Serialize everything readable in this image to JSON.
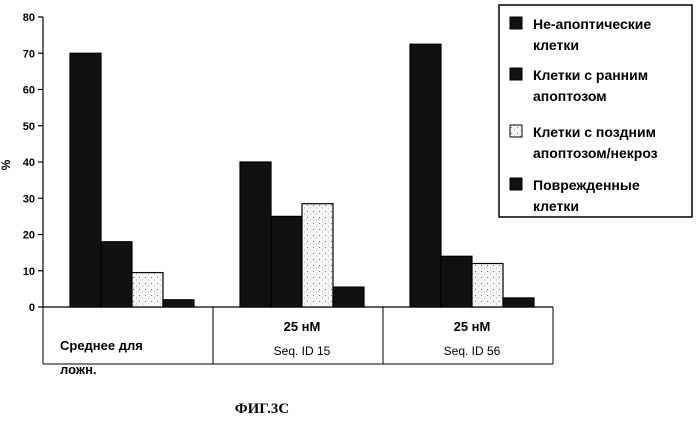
{
  "chart_data": {
    "type": "bar",
    "ylabel": "%",
    "ylim": [
      0,
      80
    ],
    "yticks": [
      0,
      10,
      20,
      30,
      40,
      50,
      60,
      70,
      80
    ],
    "grid": false,
    "legend_position": "top-right",
    "categories": [
      {
        "line1": "",
        "line2": "Среднее для",
        "line3": "ложн."
      },
      {
        "line1": "",
        "line2": "25 нМ",
        "line3": "Seq. ID 15"
      },
      {
        "line1": "",
        "line2": "25 нМ",
        "line3": "Seq. ID 56"
      }
    ],
    "series": [
      {
        "name": "Не-апоптические клетки",
        "legend_lines": [
          "Не-апоптические",
          "клетки"
        ],
        "color": "#111111",
        "values": [
          70,
          40,
          72.5
        ]
      },
      {
        "name": "Клетки с ранним апоптозом",
        "legend_lines": [
          "Клетки с ранним",
          "апоптозом"
        ],
        "color": "#111111",
        "values": [
          18,
          25,
          14
        ]
      },
      {
        "name": "Клетки с поздним апоптозом/некроз",
        "legend_lines": [
          "Клетки с поздним",
          "апоптозом/некроз"
        ],
        "color": "#f4f4f4",
        "values": [
          9.5,
          28.5,
          12
        ]
      },
      {
        "name": "Поврежденные клетки",
        "legend_lines": [
          "Поврежденные",
          "клетки"
        ],
        "color": "#111111",
        "values": [
          2,
          5.5,
          2.5
        ]
      }
    ],
    "caption": "ФИГ.3С"
  }
}
